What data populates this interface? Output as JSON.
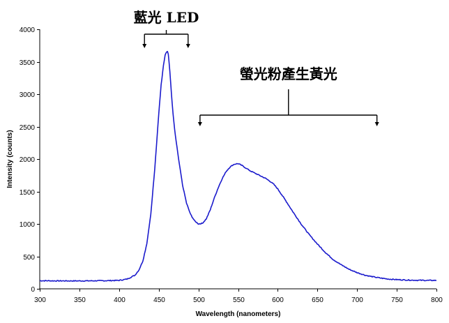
{
  "chart_data": {
    "type": "line",
    "title": "",
    "xlabel": "Wavelength (nanometers)",
    "ylabel": "Intensity (counts)",
    "xlim": [
      300,
      800
    ],
    "ylim": [
      0,
      4000
    ],
    "x_ticks": [
      300,
      350,
      400,
      450,
      500,
      550,
      600,
      650,
      700,
      750,
      800
    ],
    "y_ticks": [
      0,
      500,
      1000,
      1500,
      2000,
      2500,
      3000,
      3500,
      4000
    ],
    "grid": false,
    "legend": "none",
    "series": [
      {
        "color": "#1a1acc",
        "x": [
          300,
          320,
          340,
          360,
          380,
          400,
          410,
          420,
          425,
          430,
          435,
          440,
          445,
          450,
          453,
          456,
          458,
          460,
          461,
          462,
          464,
          466,
          468,
          470,
          475,
          480,
          485,
          490,
          495,
          500,
          505,
          510,
          515,
          520,
          525,
          530,
          535,
          540,
          545,
          550,
          555,
          560,
          565,
          570,
          575,
          580,
          585,
          590,
          595,
          600,
          610,
          620,
          630,
          640,
          650,
          660,
          670,
          680,
          690,
          700,
          710,
          720,
          730,
          740,
          750,
          760,
          770,
          780,
          790,
          800
        ],
        "y": [
          125,
          123,
          122,
          123,
          125,
          130,
          150,
          210,
          290,
          430,
          700,
          1150,
          1850,
          2700,
          3150,
          3450,
          3600,
          3650,
          3660,
          3620,
          3350,
          3000,
          2700,
          2450,
          2000,
          1600,
          1320,
          1150,
          1050,
          1000,
          1010,
          1080,
          1220,
          1400,
          1560,
          1700,
          1810,
          1880,
          1920,
          1930,
          1900,
          1860,
          1820,
          1790,
          1760,
          1730,
          1700,
          1660,
          1610,
          1540,
          1360,
          1170,
          990,
          830,
          690,
          560,
          450,
          370,
          300,
          250,
          210,
          185,
          165,
          150,
          142,
          137,
          133,
          131,
          130,
          130
        ]
      }
    ],
    "annotations": [
      {
        "text": "藍光 LED",
        "x_range": [
          432,
          487
        ]
      },
      {
        "text": "螢光粉產生黃光",
        "x_range": [
          502,
          725
        ]
      }
    ]
  }
}
